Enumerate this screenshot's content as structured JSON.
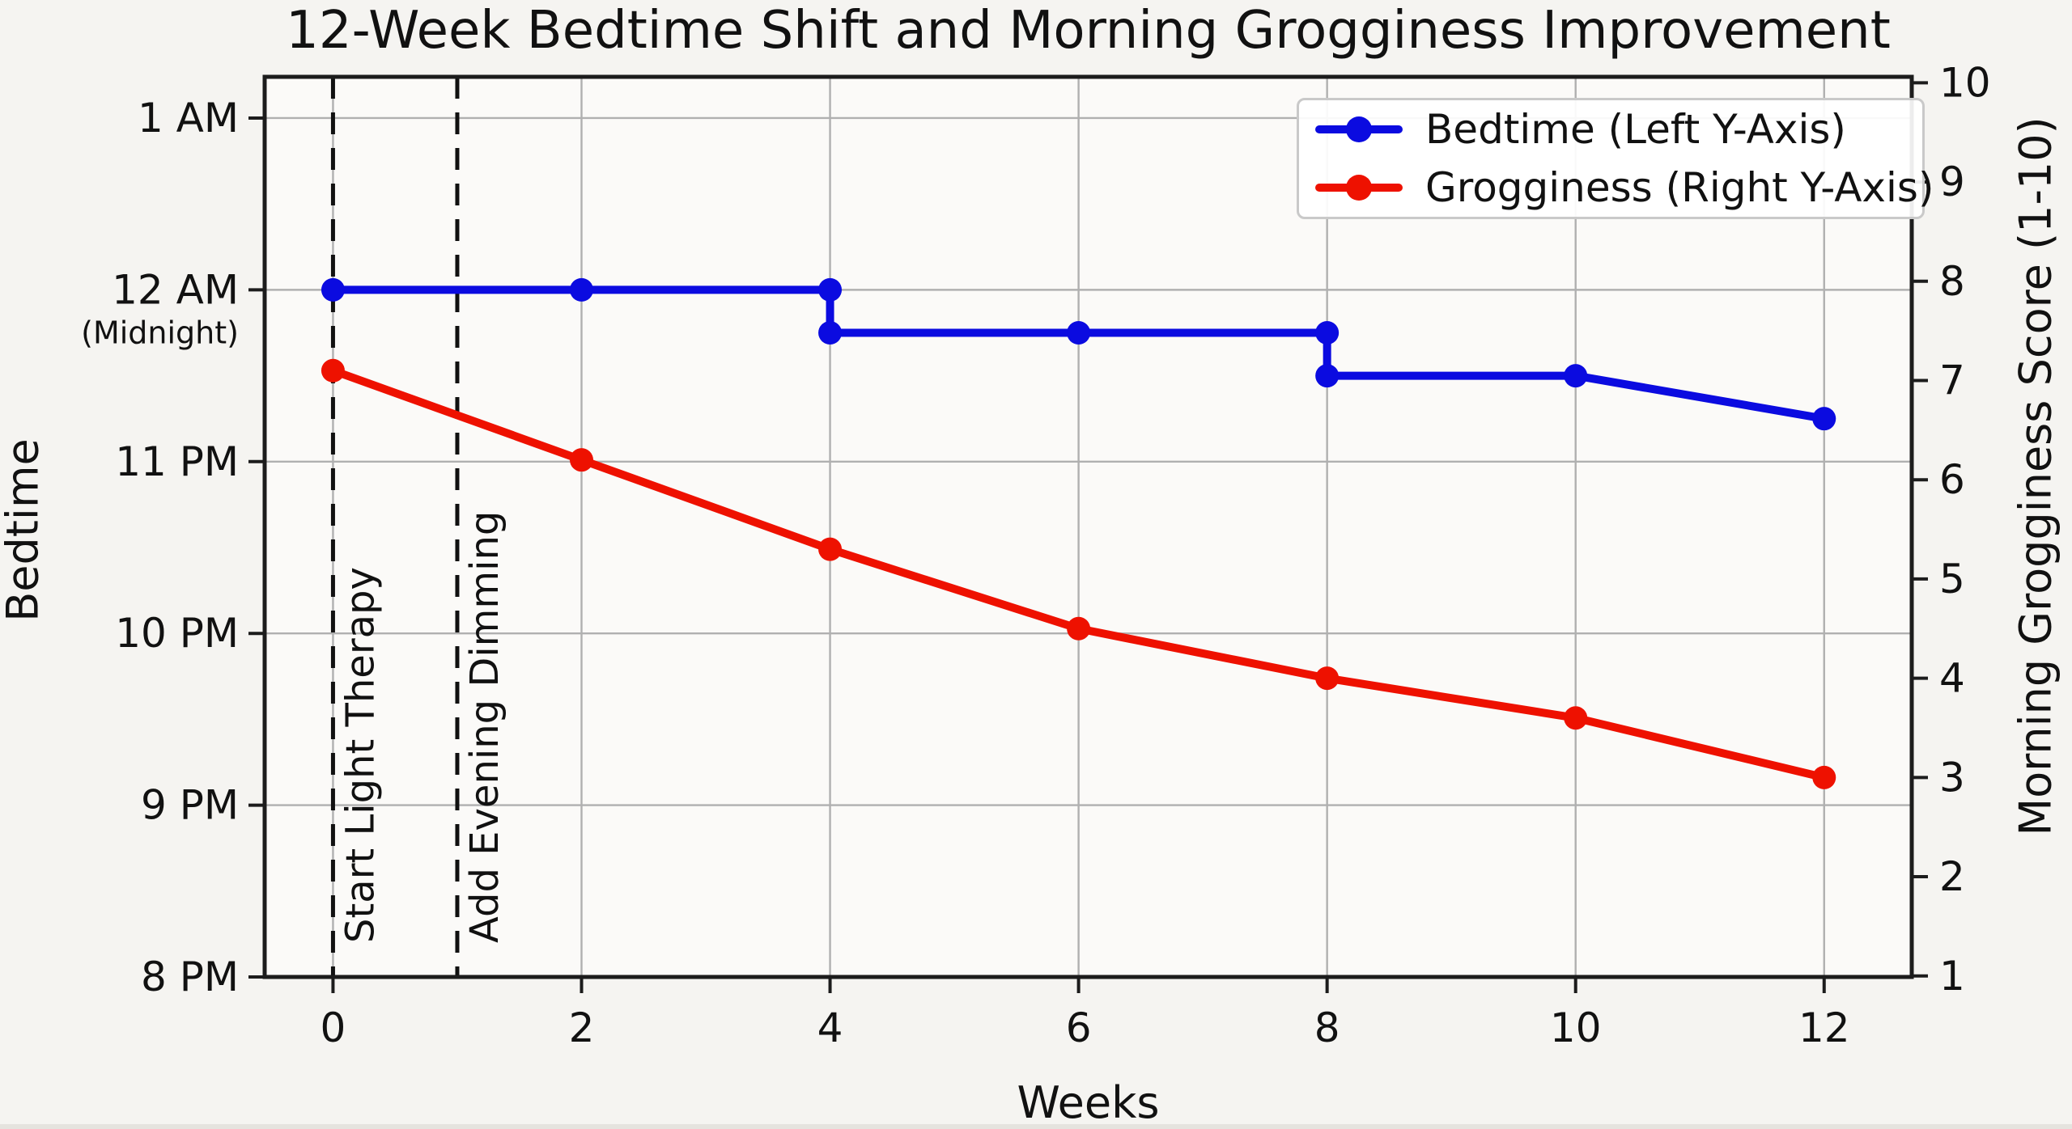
{
  "chart_data": {
    "type": "line",
    "title": "12-Week Bedtime Shift and Morning Grogginess Improvement",
    "x_axis": {
      "label": "Weeks",
      "ticks": [
        0,
        2,
        4,
        6,
        8,
        10,
        12
      ],
      "range": [
        -0.55,
        12.705
      ],
      "gridlines": true
    },
    "left_axis": {
      "label": "Bedtime",
      "range": [
        20,
        25.24
      ],
      "gridlines": true,
      "ticks": [
        {
          "value": 25,
          "label": "1 AM",
          "sublabel": ""
        },
        {
          "value": 24,
          "label": "12 AM",
          "sublabel": "(Midnight)"
        },
        {
          "value": 23,
          "label": "11 PM",
          "sublabel": ""
        },
        {
          "value": 22,
          "label": "10 PM",
          "sublabel": ""
        },
        {
          "value": 21,
          "label": "9 PM",
          "sublabel": ""
        },
        {
          "value": 20,
          "label": "8 PM",
          "sublabel": ""
        }
      ]
    },
    "right_axis": {
      "label": "Morning Grogginess Score (1-10)",
      "range": [
        0.99,
        10.06
      ],
      "ticks": [
        1,
        2,
        3,
        4,
        5,
        6,
        7,
        8,
        9,
        10
      ],
      "gridlines": false
    },
    "series": [
      {
        "name": "Bedtime (Left Y-Axis)",
        "axis": "left",
        "color": "#0b0be0",
        "points": [
          [
            0,
            24
          ],
          [
            2,
            24
          ],
          [
            4,
            24
          ],
          [
            4,
            23.75
          ],
          [
            6,
            23.75
          ],
          [
            8,
            23.75
          ],
          [
            8,
            23.5
          ],
          [
            10,
            23.5
          ],
          [
            12,
            23.25
          ]
        ]
      },
      {
        "name": "Grogginess (Right Y-Axis)",
        "axis": "right",
        "color": "#ee1100",
        "points": [
          [
            0,
            7.1
          ],
          [
            2,
            6.2
          ],
          [
            4,
            5.3
          ],
          [
            6,
            4.5
          ],
          [
            8,
            4.0
          ],
          [
            10,
            3.6
          ],
          [
            12,
            3.0
          ]
        ]
      }
    ],
    "annotations": [
      {
        "x": 0,
        "label": "Start Light Therapy"
      },
      {
        "x": 1,
        "label": "Add Evening Dimming"
      }
    ],
    "legend": {
      "position": "upper right",
      "entries": [
        "Bedtime (Left Y-Axis)",
        "Grogginess (Right Y-Axis)"
      ]
    }
  },
  "colors": {
    "figure_bg": "#f5f4f1",
    "plot_bg": "#fbfaf8",
    "grid": "#b0b0b0",
    "spine": "#1c1c1c",
    "tick_text": "#111111",
    "annotation_line": "#111111",
    "legend_border": "#c9c9c9"
  }
}
